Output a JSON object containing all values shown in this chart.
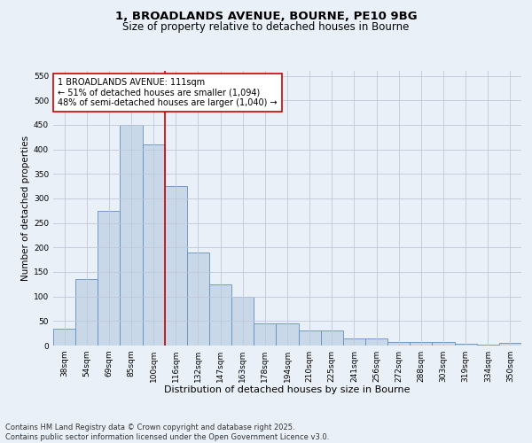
{
  "title_line1": "1, BROADLANDS AVENUE, BOURNE, PE10 9BG",
  "title_line2": "Size of property relative to detached houses in Bourne",
  "xlabel": "Distribution of detached houses by size in Bourne",
  "ylabel": "Number of detached properties",
  "categories": [
    "38sqm",
    "54sqm",
    "69sqm",
    "85sqm",
    "100sqm",
    "116sqm",
    "132sqm",
    "147sqm",
    "163sqm",
    "178sqm",
    "194sqm",
    "210sqm",
    "225sqm",
    "241sqm",
    "256sqm",
    "272sqm",
    "288sqm",
    "303sqm",
    "319sqm",
    "334sqm",
    "350sqm"
  ],
  "values": [
    35,
    135,
    275,
    450,
    410,
    325,
    190,
    125,
    100,
    45,
    45,
    30,
    30,
    15,
    15,
    7,
    7,
    8,
    3,
    2,
    5
  ],
  "bar_color": "#c8d8e8",
  "bar_edge_color": "#6090c0",
  "vline_x": 4.5,
  "vline_color": "#cc0000",
  "annotation_line1": "1 BROADLANDS AVENUE: 111sqm",
  "annotation_line2": "← 51% of detached houses are smaller (1,094)",
  "annotation_line3": "48% of semi-detached houses are larger (1,040) →",
  "annotation_box_color": "#cc0000",
  "annotation_box_fill": "#ffffff",
  "ylim": [
    0,
    560
  ],
  "yticks": [
    0,
    50,
    100,
    150,
    200,
    250,
    300,
    350,
    400,
    450,
    500,
    550
  ],
  "grid_color": "#c0c8d8",
  "background_color": "#eaf0f8",
  "footer_text": "Contains HM Land Registry data © Crown copyright and database right 2025.\nContains public sector information licensed under the Open Government Licence v3.0.",
  "title_fontsize": 9.5,
  "subtitle_fontsize": 8.5,
  "xlabel_fontsize": 8,
  "ylabel_fontsize": 7.5,
  "tick_fontsize": 6.5,
  "annotation_fontsize": 7,
  "footer_fontsize": 6
}
